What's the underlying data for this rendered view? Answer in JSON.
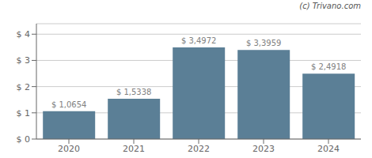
{
  "chart_data": {
    "type": "bar",
    "categories": [
      "2020",
      "2021",
      "2022",
      "2023",
      "2024"
    ],
    "values": [
      1.0654,
      1.5338,
      3.4972,
      3.3959,
      2.4918
    ],
    "value_labels": [
      "$ 1,0654",
      "$ 1,5338",
      "$ 3,4972",
      "$ 3,3959",
      "$ 2,4918"
    ],
    "data_labels": true,
    "color": "#5b7f96",
    "ylim": [
      0,
      4.4
    ],
    "yticks": [
      {
        "value": 0,
        "label": "$ 0"
      },
      {
        "value": 1,
        "label": "$ 1"
      },
      {
        "value": 2,
        "label": "$ 2"
      },
      {
        "value": 3,
        "label": "$ 3"
      },
      {
        "value": 4,
        "label": "$ 4"
      }
    ],
    "grid": true,
    "annotations": [
      "(c) Trivano.com"
    ]
  }
}
